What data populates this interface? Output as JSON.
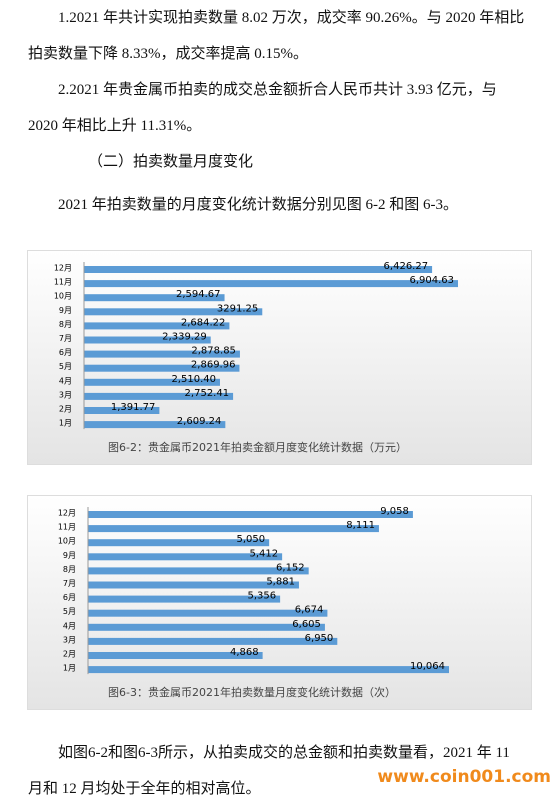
{
  "paragraphs": [
    "1.2021 年共计实现拍卖数量 8.02 万次，成交率 90.26%。与 2020 年相比拍卖数量下降 8.33%，成交率提高 0.15%。",
    "2.2021 年贵金属币拍卖的成交总金额折合人民币共计 3.93 亿元，与 2020 年相比上升 11.31%。",
    "（二）拍卖数量月度变化",
    "2021 年拍卖数量的月度变化统计数据分别见图 6-2 和图 6-3。"
  ],
  "chart_data": [
    {
      "type": "barh",
      "title": "图6-2：贵金属币2021年拍卖金额月度变化统计数据（万元）",
      "color": "#5b9bd5",
      "categories": [
        "12月",
        "11月",
        "10月",
        "9月",
        "8月",
        "7月",
        "6月",
        "5月",
        "4月",
        "3月",
        "2月",
        "1月"
      ],
      "values": [
        6426.27,
        6904.63,
        2594.67,
        3291.25,
        2684.22,
        2339.29,
        2878.85,
        2869.96,
        2510.4,
        2752.41,
        1391.77,
        2609.24
      ],
      "value_labels": [
        "6,426.27",
        "6,904.63",
        "2,594.67",
        "3291.25",
        "2,684.22",
        "2,339.29",
        "2,878.85",
        "2,869.96",
        "2,510.40",
        "2,752.41",
        "1,391.77",
        "2,609.24"
      ]
    },
    {
      "type": "barh",
      "title": "图6-3：贵金属币2021年拍卖数量月度变化统计数据（次）",
      "color": "#5b9bd5",
      "categories": [
        "12月",
        "11月",
        "10月",
        "9月",
        "8月",
        "7月",
        "6月",
        "5月",
        "4月",
        "3月",
        "2月",
        "1月"
      ],
      "values": [
        9058,
        8111,
        5050,
        5412,
        6152,
        5881,
        5356,
        6674,
        6605,
        6950,
        4868,
        10064
      ],
      "value_labels": [
        "9,058",
        "8,111",
        "5,050",
        "5,412",
        "6,152",
        "5,881",
        "5,356",
        "6,674",
        "6,605",
        "6,950",
        "4,868",
        "10,064"
      ]
    }
  ],
  "closing": "如图6-2和图6-3所示，从拍卖成交的总金额和拍卖数量看，2021 年 11 月和 12 月均处于全年的相对高位。",
  "watermark": "www.coin001.com"
}
